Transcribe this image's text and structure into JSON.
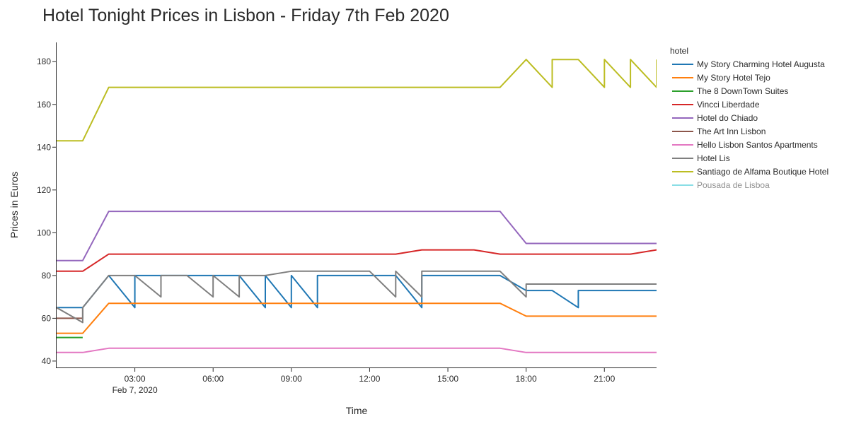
{
  "chart_data": {
    "type": "line",
    "title": "Hotel Tonight Prices in Lisbon - Friday 7th Feb 2020",
    "xlabel": "Time",
    "ylabel": "Prices in Euros",
    "x_unit": "hours on Feb 7, 2020",
    "xlim": [
      0,
      23
    ],
    "ylim": [
      37,
      189
    ],
    "x_ticks": [
      {
        "value": 3,
        "label": "03:00",
        "sublabel": "Feb 7, 2020"
      },
      {
        "value": 6,
        "label": "06:00",
        "sublabel": ""
      },
      {
        "value": 9,
        "label": "09:00",
        "sublabel": ""
      },
      {
        "value": 12,
        "label": "12:00",
        "sublabel": ""
      },
      {
        "value": 15,
        "label": "15:00",
        "sublabel": ""
      },
      {
        "value": 18,
        "label": "18:00",
        "sublabel": ""
      },
      {
        "value": 21,
        "label": "21:00",
        "sublabel": ""
      }
    ],
    "y_ticks": [
      40,
      60,
      80,
      100,
      120,
      140,
      160,
      180
    ],
    "grid": false,
    "legend": {
      "title": "hotel",
      "placement": "right"
    },
    "series": [
      {
        "name": "My Story Charming Hotel Augusta",
        "color": "#1f77b4",
        "visible": true,
        "points": [
          [
            0,
            65
          ],
          [
            1,
            65
          ],
          [
            2,
            80
          ],
          [
            3,
            65
          ],
          [
            3,
            80
          ],
          [
            5,
            80
          ],
          [
            7,
            80
          ],
          [
            8,
            65
          ],
          [
            8,
            80
          ],
          [
            9,
            65
          ],
          [
            9,
            80
          ],
          [
            10,
            65
          ],
          [
            10,
            80
          ],
          [
            13,
            80
          ],
          [
            14,
            65
          ],
          [
            14,
            80
          ],
          [
            17,
            80
          ],
          [
            18,
            73
          ],
          [
            19,
            73
          ],
          [
            20,
            65
          ],
          [
            20,
            73
          ],
          [
            23,
            73
          ]
        ]
      },
      {
        "name": "My Story Hotel Tejo",
        "color": "#ff7f0e",
        "visible": true,
        "points": [
          [
            0,
            53
          ],
          [
            1,
            53
          ],
          [
            2,
            67
          ],
          [
            17,
            67
          ],
          [
            18,
            61
          ],
          [
            23,
            61
          ]
        ]
      },
      {
        "name": "The 8 DownTown Suites",
        "color": "#2ca02c",
        "visible": true,
        "points": [
          [
            0,
            51
          ],
          [
            1,
            51
          ]
        ]
      },
      {
        "name": "Vincci Liberdade",
        "color": "#d62728",
        "visible": true,
        "points": [
          [
            0,
            82
          ],
          [
            1,
            82
          ],
          [
            2,
            90
          ],
          [
            13,
            90
          ],
          [
            14,
            92
          ],
          [
            16,
            92
          ],
          [
            17,
            90
          ],
          [
            22,
            90
          ],
          [
            23,
            92
          ]
        ]
      },
      {
        "name": "Hotel do Chiado",
        "color": "#9467bd",
        "visible": true,
        "points": [
          [
            0,
            87
          ],
          [
            1,
            87
          ],
          [
            2,
            110
          ],
          [
            17,
            110
          ],
          [
            18,
            95
          ],
          [
            23,
            95
          ]
        ]
      },
      {
        "name": "The Art Inn Lisbon",
        "color": "#8c564b",
        "visible": true,
        "points": [
          [
            0,
            60
          ],
          [
            1,
            60
          ],
          [
            1,
            65
          ]
        ]
      },
      {
        "name": "Hello Lisbon Santos Apartments",
        "color": "#e377c2",
        "visible": true,
        "points": [
          [
            0,
            44
          ],
          [
            1,
            44
          ],
          [
            2,
            46
          ],
          [
            17,
            46
          ],
          [
            18,
            44
          ],
          [
            23,
            44
          ]
        ]
      },
      {
        "name": "Hotel Lis",
        "color": "#7f7f7f",
        "visible": true,
        "points": [
          [
            0,
            65
          ],
          [
            1,
            58
          ],
          [
            1,
            65
          ],
          [
            2,
            80
          ],
          [
            3,
            80
          ],
          [
            4,
            70
          ],
          [
            4,
            80
          ],
          [
            5,
            80
          ],
          [
            6,
            70
          ],
          [
            6,
            80
          ],
          [
            7,
            70
          ],
          [
            7,
            80
          ],
          [
            8,
            80
          ],
          [
            9,
            82
          ],
          [
            12,
            82
          ],
          [
            13,
            70
          ],
          [
            13,
            82
          ],
          [
            14,
            70
          ],
          [
            14,
            82
          ],
          [
            17,
            82
          ],
          [
            18,
            70
          ],
          [
            18,
            76
          ],
          [
            23,
            76
          ]
        ]
      },
      {
        "name": "Santiago de Alfama Boutique Hotel",
        "color": "#bcbd22",
        "visible": true,
        "points": [
          [
            0,
            143
          ],
          [
            1,
            143
          ],
          [
            2,
            168
          ],
          [
            17,
            168
          ],
          [
            18,
            181
          ],
          [
            19,
            168
          ],
          [
            19,
            181
          ],
          [
            20,
            181
          ],
          [
            21,
            168
          ],
          [
            21,
            181
          ],
          [
            22,
            168
          ],
          [
            22,
            181
          ],
          [
            23,
            168
          ],
          [
            23,
            181
          ]
        ]
      },
      {
        "name": "Pousada de Lisboa",
        "color": "#17becf",
        "visible": false,
        "points": []
      }
    ]
  }
}
